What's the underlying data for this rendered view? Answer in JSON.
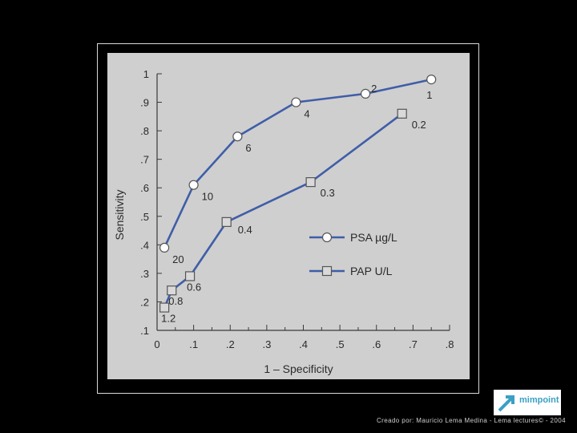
{
  "chart_data": {
    "type": "line",
    "xlabel": "1 – Specificity",
    "ylabel": "Sensitivity",
    "xlim": [
      0,
      0.8
    ],
    "ylim": [
      0.1,
      1.0
    ],
    "x_ticks": [
      "0",
      ".1",
      ".2",
      ".3",
      ".4",
      ".5",
      ".6",
      ".7",
      ".8"
    ],
    "y_ticks": [
      ".1",
      ".2",
      ".3",
      ".4",
      ".5",
      ".6",
      ".7",
      ".8",
      ".9",
      "1"
    ],
    "grid": false,
    "legend_position": "center-right",
    "series": [
      {
        "name": "PSA µg/L",
        "marker": "circle",
        "color": "#3f5ea8",
        "x": [
          0.02,
          0.1,
          0.22,
          0.38,
          0.57,
          0.75
        ],
        "y": [
          0.39,
          0.61,
          0.78,
          0.9,
          0.93,
          0.98
        ],
        "labels": [
          "20",
          "10",
          "6",
          "4",
          "2",
          "1"
        ]
      },
      {
        "name": "PAP U/L",
        "marker": "square",
        "color": "#3f5ea8",
        "x": [
          0.02,
          0.04,
          0.09,
          0.19,
          0.42,
          0.67
        ],
        "y": [
          0.18,
          0.24,
          0.29,
          0.48,
          0.62,
          0.86
        ],
        "labels": [
          "1.2",
          "0.8",
          "0.6",
          "0.4",
          "0.3",
          "0.2"
        ]
      }
    ]
  },
  "footer": {
    "credit": "Creado por: Mauricio Lema Medina - Lema lectures© - 2004",
    "logo_text": "mimpoint"
  },
  "colors": {
    "background": "#000000",
    "figure_background": "#cfcfcf",
    "series_color": "#3f5ea8",
    "marker_fill": "#ffffff",
    "square_fill": "#d9d9d9"
  }
}
